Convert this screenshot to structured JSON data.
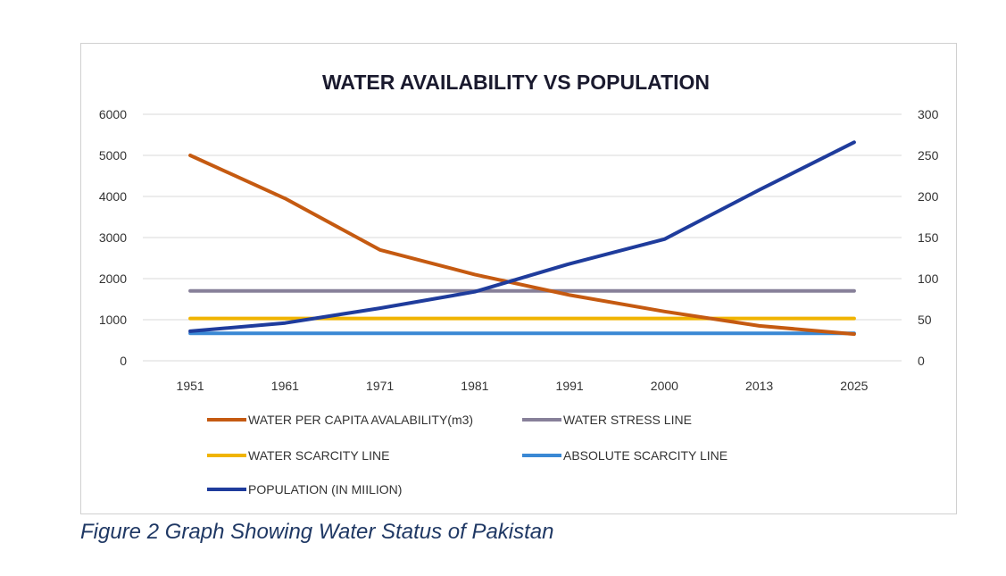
{
  "chart_data": {
    "type": "line",
    "title": "WATER AVAILABILITY VS POPULATION",
    "categories": [
      "1951",
      "1961",
      "1971",
      "1981",
      "1991",
      "2000",
      "2013",
      "2025"
    ],
    "ylim_left": [
      0,
      6000
    ],
    "yticks_left": [
      "6000",
      "5000",
      "4000",
      "3000",
      "2000",
      "1000",
      "0"
    ],
    "ylim_right": [
      0,
      300
    ],
    "yticks_right": [
      "300",
      "250",
      "200",
      "150",
      "100",
      "50",
      "0"
    ],
    "grid": true,
    "series": [
      {
        "name": "WATER PER CAPITA AVALABILITY(m3)",
        "axis": "left",
        "color": "#c55a11",
        "values": [
          5000,
          3950,
          2700,
          2100,
          1600,
          1200,
          850,
          650
        ]
      },
      {
        "name": "WATER STRESS LINE",
        "axis": "left",
        "color": "#878099",
        "values": [
          1700,
          1700,
          1700,
          1700,
          1700,
          1700,
          1700,
          1700
        ]
      },
      {
        "name": "WATER SCARCITY LINE",
        "axis": "left",
        "color": "#f0b400",
        "values": [
          1030,
          1030,
          1030,
          1030,
          1030,
          1030,
          1030,
          1030
        ]
      },
      {
        "name": "ABSOLUTE SCARCITY LINE",
        "axis": "left",
        "color": "#3a88d4",
        "values": [
          670,
          670,
          670,
          670,
          670,
          670,
          670,
          670
        ]
      },
      {
        "name": "POPULATION (IN MIILION)",
        "axis": "right",
        "color": "#1f3c9c",
        "values": [
          36,
          46,
          64,
          84,
          118,
          148,
          208,
          266
        ]
      }
    ]
  },
  "caption": "Figure 2  Graph Showing Water Status of Pakistan"
}
